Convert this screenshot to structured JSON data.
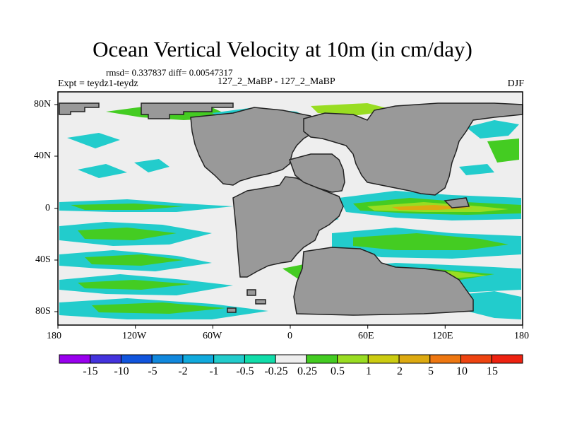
{
  "title": "Ocean Vertical Velocity at 10m (in cm/day)",
  "stats_line": "rmsd= 0.337837 diff= 0.00547317",
  "experiment": "Expt = teydz1-teydz",
  "center_label": "127_2_MaBP - 127_2_MaBP",
  "season": "DJF",
  "x_ticks": [
    "180",
    "120W",
    "60W",
    "0",
    "60E",
    "120E",
    "180"
  ],
  "y_ticks": [
    "80N",
    "40N",
    "0",
    "40S",
    "80S"
  ],
  "colorbar": {
    "colors": [
      "#9900ee",
      "#4433dd",
      "#1155dd",
      "#1188dd",
      "#11aadd",
      "#22cccc",
      "#11ddaa",
      "#eeeeee",
      "#44cc22",
      "#99dd22",
      "#cccc11",
      "#ddaa11",
      "#ee7711",
      "#ee4411",
      "#ee2211"
    ],
    "labels": [
      "-15",
      "-10",
      "-5",
      "-2",
      "-1",
      "-0.5",
      "-0.25",
      "0.25",
      "0.5",
      "1",
      "2",
      "5",
      "10",
      "15"
    ]
  },
  "colors": {
    "land": "#999999",
    "ocean_neutral": "#eeeeee",
    "cyan": "#22cccc",
    "green": "#44cc22",
    "yellow_green": "#99dd22",
    "orange": "#ddaa11"
  }
}
